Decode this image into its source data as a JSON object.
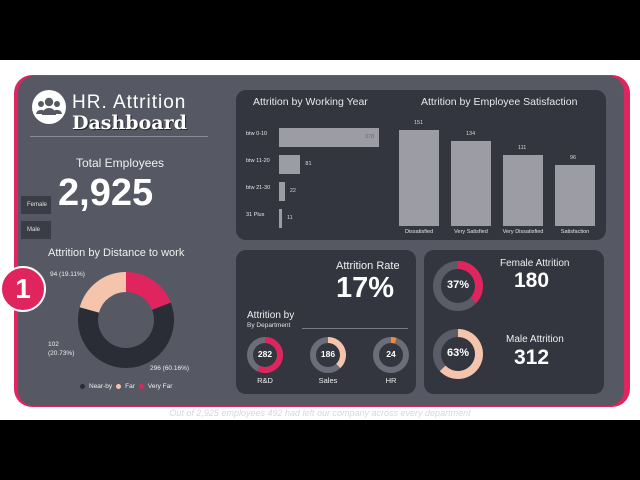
{
  "header": {
    "title_line1": "HR. Attrition",
    "title_line2": "Dashboard",
    "icon": "group-people-icon"
  },
  "total": {
    "label": "Total Employees",
    "value": "2,925"
  },
  "slicer": {
    "items": [
      "Female",
      "Male"
    ]
  },
  "distance": {
    "title": "Attrition by Distance to work",
    "labels": {
      "very_far": "94 (19.11%)",
      "far": "102\n(20.73%)",
      "near": "296 (60.16%)"
    },
    "legend": [
      "Near-by",
      "Far",
      "Very Far"
    ],
    "chart_data": {
      "type": "pie",
      "categories": [
        "Near-by",
        "Far",
        "Very Far"
      ],
      "values": [
        296,
        102,
        94
      ],
      "percents": [
        60.16,
        20.73,
        19.11
      ]
    }
  },
  "working_year": {
    "title": "Attrition by Working Year",
    "chart_data": {
      "type": "bar",
      "orientation": "horizontal",
      "categories": [
        "btw 0-10",
        "btw 11-20",
        "btw 21-30",
        "31 Plus"
      ],
      "values": [
        378,
        81,
        22,
        11
      ]
    }
  },
  "satisfaction": {
    "title": "Attrition by Employee Satisfaction",
    "chart_data": {
      "type": "bar",
      "categories": [
        "Dissatisfied",
        "Very Satisfied",
        "Very Dissatisfied",
        "Satisfaction"
      ],
      "values": [
        151,
        134,
        111,
        96
      ]
    }
  },
  "rate": {
    "label": "Attrition Rate",
    "value": "17%"
  },
  "department": {
    "title": "Attrition by",
    "subtitle": "By Department",
    "items": [
      {
        "name": "R&D",
        "value": "282",
        "fraction": 0.57
      },
      {
        "name": "Sales",
        "value": "186",
        "fraction": 0.38
      },
      {
        "name": "HR",
        "value": "24",
        "fraction": 0.05
      }
    ]
  },
  "female": {
    "label": "Female Attrition",
    "value": "180",
    "percent": "37%",
    "fraction": 0.37
  },
  "male": {
    "label": "Male Attrition",
    "value": "312",
    "percent": "63%",
    "fraction": 0.63
  },
  "badge": {
    "number": "1"
  },
  "caption": "Out of 2,925 employees 492 had left our company across every department",
  "colors": {
    "pink": "#e0245e",
    "peach": "#f5c4ad",
    "dark": "#2b2d36",
    "bar": "#9c9ca4",
    "orange": "#f28a3b"
  }
}
